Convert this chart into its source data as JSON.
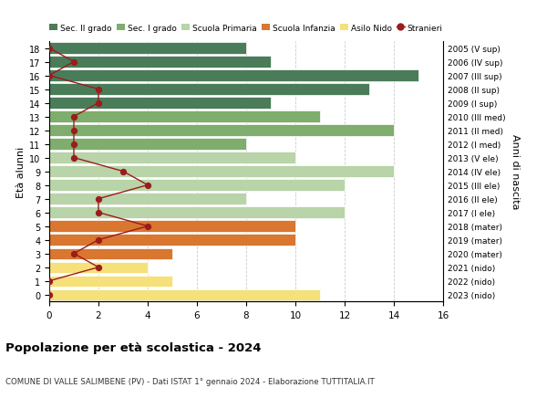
{
  "ages": [
    18,
    17,
    16,
    15,
    14,
    13,
    12,
    11,
    10,
    9,
    8,
    7,
    6,
    5,
    4,
    3,
    2,
    1,
    0
  ],
  "years_labels": [
    "2005 (V sup)",
    "2006 (IV sup)",
    "2007 (III sup)",
    "2008 (II sup)",
    "2009 (I sup)",
    "2010 (III med)",
    "2011 (II med)",
    "2012 (I med)",
    "2013 (V ele)",
    "2014 (IV ele)",
    "2015 (III ele)",
    "2016 (II ele)",
    "2017 (I ele)",
    "2018 (mater)",
    "2019 (mater)",
    "2020 (mater)",
    "2021 (nido)",
    "2022 (nido)",
    "2023 (nido)"
  ],
  "bar_values": [
    8,
    9,
    15,
    13,
    9,
    11,
    14,
    8,
    10,
    14,
    12,
    8,
    12,
    10,
    10,
    5,
    4,
    5,
    11
  ],
  "stranieri": [
    0,
    1,
    0,
    2,
    2,
    1,
    1,
    1,
    1,
    3,
    4,
    2,
    2,
    4,
    2,
    1,
    2,
    0,
    0
  ],
  "bar_colors": [
    "#4a7c59",
    "#4a7c59",
    "#4a7c59",
    "#4a7c59",
    "#4a7c59",
    "#7fad6e",
    "#7fad6e",
    "#7fad6e",
    "#b8d4a8",
    "#b8d4a8",
    "#b8d4a8",
    "#b8d4a8",
    "#b8d4a8",
    "#d97630",
    "#d97630",
    "#d97630",
    "#f5e07a",
    "#f5e07a",
    "#f5e07a"
  ],
  "legend_labels": [
    "Sec. II grado",
    "Sec. I grado",
    "Scuola Primaria",
    "Scuola Infanzia",
    "Asilo Nido",
    "Stranieri"
  ],
  "legend_colors": [
    "#4a7c59",
    "#7fad6e",
    "#b8d4a8",
    "#d97630",
    "#f5e07a",
    "#a02020"
  ],
  "title": "Popolazione per età scolastica - 2024",
  "subtitle": "COMUNE DI VALLE SALIMBENE (PV) - Dati ISTAT 1° gennaio 2024 - Elaborazione TUTTITALIA.IT",
  "ylabel_left": "Età alunni",
  "ylabel_right": "Anni di nascita",
  "xlim": [
    0,
    16
  ],
  "xticks": [
    0,
    2,
    4,
    6,
    8,
    10,
    12,
    14,
    16
  ],
  "stranieri_color": "#9b1c1c",
  "grid_color": "#cccccc"
}
